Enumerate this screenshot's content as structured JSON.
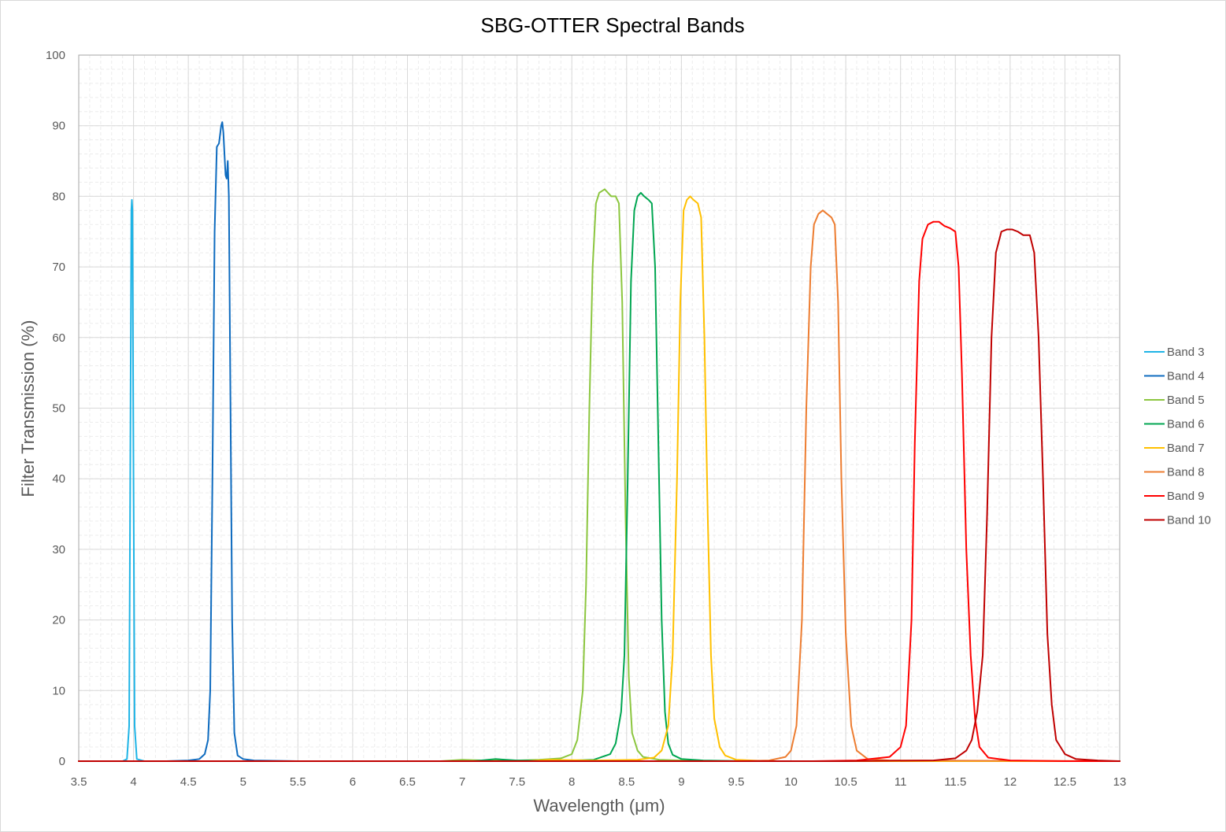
{
  "chart_data": {
    "type": "line",
    "title": "SBG-OTTER Spectral Bands",
    "xlabel": "Wavelength (μm)",
    "ylabel": "Filter Transmission (%)",
    "xlim": [
      3.5,
      13
    ],
    "ylim": [
      0,
      100
    ],
    "x_major_step": 0.5,
    "y_major_step": 10,
    "x_ticks": [
      "3.5",
      "4",
      "4.5",
      "5",
      "5.5",
      "6",
      "6.5",
      "7",
      "7.5",
      "8",
      "8.5",
      "9",
      "9.5",
      "10",
      "10.5",
      "11",
      "11.5",
      "12",
      "12.5",
      "13"
    ],
    "y_ticks": [
      "0",
      "10",
      "20",
      "30",
      "40",
      "50",
      "60",
      "70",
      "80",
      "90",
      "100"
    ],
    "grid": {
      "major": true,
      "minor": true
    },
    "legend_position": "right",
    "series": [
      {
        "name": "Band 3",
        "color": "#1fb4e6",
        "points": [
          [
            3.5,
            0
          ],
          [
            3.9,
            0
          ],
          [
            3.94,
            0.3
          ],
          [
            3.96,
            5
          ],
          [
            3.97,
            40
          ],
          [
            3.98,
            78
          ],
          [
            3.985,
            79.5
          ],
          [
            3.99,
            78
          ],
          [
            4.0,
            40
          ],
          [
            4.01,
            5
          ],
          [
            4.03,
            0.3
          ],
          [
            4.1,
            0
          ],
          [
            13,
            0
          ]
        ]
      },
      {
        "name": "Band 4",
        "color": "#0e6bbf",
        "points": [
          [
            3.5,
            0
          ],
          [
            4.3,
            0
          ],
          [
            4.5,
            0.1
          ],
          [
            4.6,
            0.3
          ],
          [
            4.65,
            1
          ],
          [
            4.68,
            3
          ],
          [
            4.7,
            10
          ],
          [
            4.72,
            40
          ],
          [
            4.74,
            75
          ],
          [
            4.76,
            87
          ],
          [
            4.78,
            87.5
          ],
          [
            4.8,
            90
          ],
          [
            4.81,
            90.5
          ],
          [
            4.82,
            89
          ],
          [
            4.84,
            83
          ],
          [
            4.85,
            82.5
          ],
          [
            4.86,
            85
          ],
          [
            4.87,
            80
          ],
          [
            4.88,
            60
          ],
          [
            4.9,
            20
          ],
          [
            4.92,
            4
          ],
          [
            4.95,
            0.8
          ],
          [
            5.0,
            0.3
          ],
          [
            5.1,
            0.1
          ],
          [
            5.5,
            0
          ],
          [
            13,
            0
          ]
        ]
      },
      {
        "name": "Band 5",
        "color": "#8cc63f",
        "points": [
          [
            3.5,
            0
          ],
          [
            6.8,
            0
          ],
          [
            7.0,
            0.2
          ],
          [
            7.2,
            0.1
          ],
          [
            7.5,
            0.1
          ],
          [
            7.7,
            0.2
          ],
          [
            7.9,
            0.4
          ],
          [
            8.0,
            1
          ],
          [
            8.05,
            3
          ],
          [
            8.1,
            10
          ],
          [
            8.13,
            25
          ],
          [
            8.16,
            50
          ],
          [
            8.19,
            70
          ],
          [
            8.22,
            79
          ],
          [
            8.25,
            80.5
          ],
          [
            8.3,
            81
          ],
          [
            8.33,
            80.5
          ],
          [
            8.36,
            80
          ],
          [
            8.4,
            80
          ],
          [
            8.43,
            79
          ],
          [
            8.46,
            65
          ],
          [
            8.49,
            35
          ],
          [
            8.52,
            12
          ],
          [
            8.55,
            4
          ],
          [
            8.6,
            1.5
          ],
          [
            8.65,
            0.6
          ],
          [
            8.8,
            0.2
          ],
          [
            9.0,
            0.1
          ],
          [
            9.5,
            0
          ],
          [
            13,
            0
          ]
        ]
      },
      {
        "name": "Band 6",
        "color": "#00a651",
        "points": [
          [
            3.5,
            0
          ],
          [
            7.1,
            0
          ],
          [
            7.3,
            0.3
          ],
          [
            7.5,
            0.1
          ],
          [
            8.0,
            0.1
          ],
          [
            8.2,
            0.2
          ],
          [
            8.35,
            1
          ],
          [
            8.4,
            2.5
          ],
          [
            8.45,
            7
          ],
          [
            8.48,
            15
          ],
          [
            8.51,
            40
          ],
          [
            8.54,
            68
          ],
          [
            8.57,
            78
          ],
          [
            8.6,
            80
          ],
          [
            8.63,
            80.5
          ],
          [
            8.66,
            80
          ],
          [
            8.7,
            79.5
          ],
          [
            8.73,
            79
          ],
          [
            8.76,
            70
          ],
          [
            8.79,
            45
          ],
          [
            8.82,
            20
          ],
          [
            8.85,
            7
          ],
          [
            8.88,
            2.5
          ],
          [
            8.92,
            0.9
          ],
          [
            9.0,
            0.3
          ],
          [
            9.2,
            0.1
          ],
          [
            9.6,
            0
          ],
          [
            13,
            0
          ]
        ]
      },
      {
        "name": "Band 7",
        "color": "#ffc000",
        "points": [
          [
            3.5,
            0
          ],
          [
            7.6,
            0
          ],
          [
            7.8,
            0.2
          ],
          [
            8.2,
            0.1
          ],
          [
            8.6,
            0.2
          ],
          [
            8.75,
            0.5
          ],
          [
            8.82,
            1.5
          ],
          [
            8.88,
            5
          ],
          [
            8.92,
            15
          ],
          [
            8.96,
            40
          ],
          [
            8.99,
            65
          ],
          [
            9.02,
            78
          ],
          [
            9.05,
            79.5
          ],
          [
            9.08,
            80
          ],
          [
            9.11,
            79.5
          ],
          [
            9.15,
            79
          ],
          [
            9.18,
            77
          ],
          [
            9.21,
            60
          ],
          [
            9.24,
            35
          ],
          [
            9.27,
            15
          ],
          [
            9.3,
            6
          ],
          [
            9.35,
            2
          ],
          [
            9.4,
            0.8
          ],
          [
            9.5,
            0.2
          ],
          [
            9.8,
            0
          ],
          [
            13,
            0
          ]
        ]
      },
      {
        "name": "Band 8",
        "color": "#ed7d31",
        "points": [
          [
            3.5,
            0
          ],
          [
            9.5,
            0
          ],
          [
            9.8,
            0.1
          ],
          [
            9.95,
            0.6
          ],
          [
            10.0,
            1.5
          ],
          [
            10.05,
            5
          ],
          [
            10.1,
            20
          ],
          [
            10.14,
            50
          ],
          [
            10.18,
            70
          ],
          [
            10.21,
            76
          ],
          [
            10.25,
            77.5
          ],
          [
            10.29,
            78
          ],
          [
            10.33,
            77.5
          ],
          [
            10.37,
            77
          ],
          [
            10.4,
            76
          ],
          [
            10.43,
            65
          ],
          [
            10.46,
            40
          ],
          [
            10.5,
            18
          ],
          [
            10.55,
            5
          ],
          [
            10.6,
            1.5
          ],
          [
            10.7,
            0.3
          ],
          [
            10.9,
            0.1
          ],
          [
            13,
            0
          ]
        ]
      },
      {
        "name": "Band 9",
        "color": "#ff0000",
        "points": [
          [
            3.5,
            0
          ],
          [
            10.2,
            0
          ],
          [
            10.6,
            0.1
          ],
          [
            10.9,
            0.6
          ],
          [
            11.0,
            2
          ],
          [
            11.05,
            5
          ],
          [
            11.1,
            20
          ],
          [
            11.13,
            45
          ],
          [
            11.17,
            68
          ],
          [
            11.2,
            74
          ],
          [
            11.25,
            76
          ],
          [
            11.3,
            76.4
          ],
          [
            11.35,
            76.4
          ],
          [
            11.4,
            75.8
          ],
          [
            11.45,
            75.5
          ],
          [
            11.5,
            75
          ],
          [
            11.53,
            70
          ],
          [
            11.56,
            55
          ],
          [
            11.6,
            30
          ],
          [
            11.64,
            15
          ],
          [
            11.68,
            6
          ],
          [
            11.72,
            2
          ],
          [
            11.8,
            0.5
          ],
          [
            12.0,
            0.1
          ],
          [
            12.5,
            0
          ],
          [
            13,
            0
          ]
        ]
      },
      {
        "name": "Band 10",
        "color": "#c00000",
        "points": [
          [
            3.5,
            0
          ],
          [
            10.5,
            0
          ],
          [
            11.3,
            0.1
          ],
          [
            11.5,
            0.4
          ],
          [
            11.6,
            1.5
          ],
          [
            11.65,
            3
          ],
          [
            11.7,
            7
          ],
          [
            11.75,
            15
          ],
          [
            11.79,
            35
          ],
          [
            11.83,
            60
          ],
          [
            11.87,
            72
          ],
          [
            11.92,
            75
          ],
          [
            11.97,
            75.3
          ],
          [
            12.02,
            75.3
          ],
          [
            12.07,
            75
          ],
          [
            12.12,
            74.5
          ],
          [
            12.18,
            74.5
          ],
          [
            12.22,
            72
          ],
          [
            12.26,
            60
          ],
          [
            12.3,
            40
          ],
          [
            12.34,
            18
          ],
          [
            12.38,
            8
          ],
          [
            12.42,
            3
          ],
          [
            12.5,
            1
          ],
          [
            12.6,
            0.3
          ],
          [
            12.8,
            0.1
          ],
          [
            13,
            0
          ]
        ]
      }
    ]
  }
}
